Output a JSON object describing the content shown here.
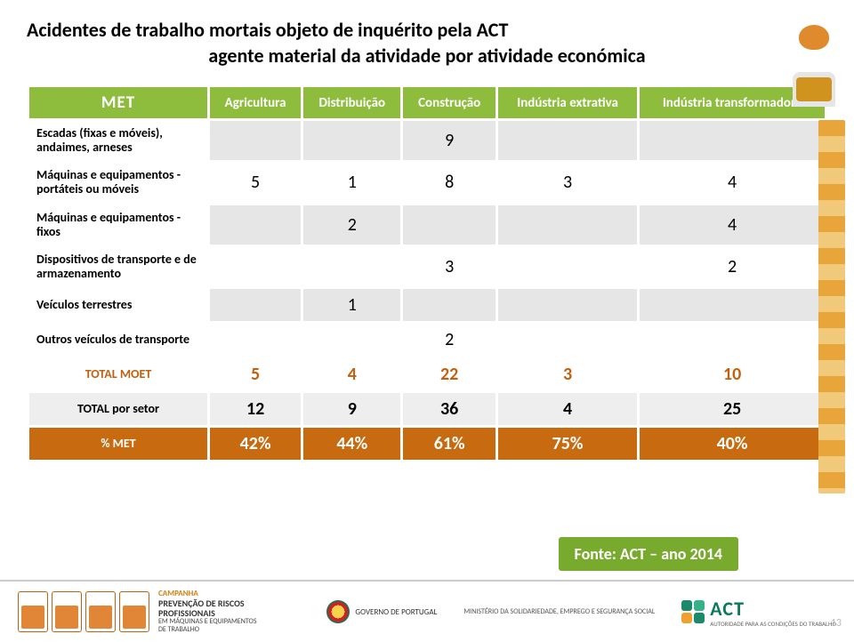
{
  "title_line1": "Acidentes de trabalho mortais objeto de inquérito pela ACT",
  "title_line2": "agente material da atividade por atividade económica",
  "columns": {
    "c0": "MET",
    "c1": "Agricultura",
    "c2": "Distribuição",
    "c3": "Construção",
    "c4": "Indústria extrativa",
    "c5": "Indústria transformadora"
  },
  "rows": {
    "r1": {
      "label": "Escadas (fixas e móveis), andaimes, arneses",
      "v": [
        "",
        "",
        "9",
        "",
        ""
      ]
    },
    "r2": {
      "label": "Máquinas e equipamentos - portáteis ou móveis",
      "v": [
        "5",
        "1",
        "8",
        "3",
        "4"
      ]
    },
    "r3": {
      "label": "Máquinas e equipamentos - fixos",
      "v": [
        "",
        "2",
        "",
        "",
        "4"
      ]
    },
    "r4": {
      "label": "Dispositivos de transporte e de armazenamento",
      "v": [
        "",
        "",
        "3",
        "",
        "2"
      ]
    },
    "r5": {
      "label": "Veículos  terrestres",
      "v": [
        "",
        "1",
        "",
        "",
        ""
      ]
    },
    "r6": {
      "label": "Outros veículos de transporte",
      "v": [
        "",
        "",
        "2",
        "",
        ""
      ]
    }
  },
  "totals": {
    "moet": {
      "label": "TOTAL MOET",
      "v": [
        "5",
        "4",
        "22",
        "3",
        "10"
      ]
    },
    "setor": {
      "label": "TOTAL por setor",
      "v": [
        "12",
        "9",
        "36",
        "4",
        "25"
      ]
    },
    "pct": {
      "label": "% MET",
      "v": [
        "42%",
        "44%",
        "61%",
        "75%",
        "40%"
      ]
    }
  },
  "source": "Fonte: ACT – ano 2014",
  "campaign": {
    "line1": "Campanha",
    "line2": "Prevenção de Riscos Profissionais",
    "line3": "em máquinas e equipamentos de trabalho"
  },
  "gov": "Governo de Portugal",
  "min": "Ministério da Solidariedade, Emprego e Segurança Social",
  "act": "ACT",
  "act_sub": "Autoridade para as Condições do Trabalho",
  "pagenum": "13",
  "colors": {
    "header_bg": "#8ebd3e",
    "orange_row": "#c86a10",
    "orange_text": "#c06010",
    "source_bg": "#78aa2e"
  }
}
